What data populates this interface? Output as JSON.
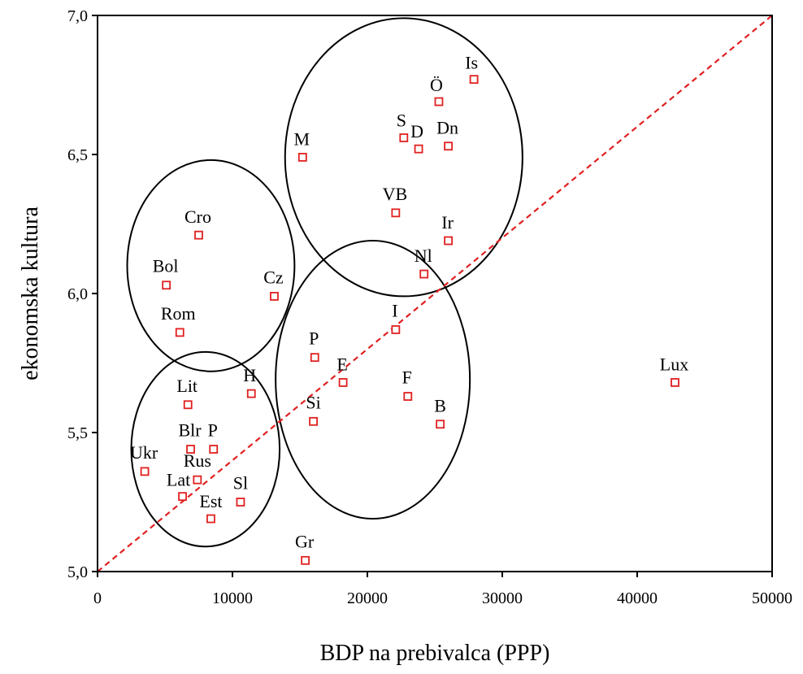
{
  "chart_data": {
    "type": "scatter",
    "xlabel": "BDP na prebivalca (PPP)",
    "ylabel": "ekonomska kultura",
    "xlim": [
      0,
      50000
    ],
    "ylim": [
      5.0,
      7.0
    ],
    "x_ticks": [
      0,
      10000,
      20000,
      30000,
      40000,
      50000
    ],
    "x_tick_labels": [
      "0",
      "10000",
      "20000",
      "30000",
      "40000",
      "50000"
    ],
    "y_ticks": [
      5.0,
      5.5,
      6.0,
      6.5,
      7.0
    ],
    "y_tick_labels": [
      "5,0",
      "5,5",
      "6,0",
      "6,5",
      "7,0"
    ],
    "grid": false,
    "marker": "open-square",
    "marker_color": "#e02020",
    "reference_line": {
      "from": [
        0,
        5.0
      ],
      "to": [
        50000,
        7.0
      ],
      "style": "dashed",
      "color": "#e02020"
    },
    "points": [
      {
        "label": "Is",
        "x": 27900,
        "y": 6.77
      },
      {
        "label": "Ö",
        "x": 25300,
        "y": 6.69
      },
      {
        "label": "S",
        "x": 22700,
        "y": 6.56
      },
      {
        "label": "D",
        "x": 23800,
        "y": 6.52
      },
      {
        "label": "Dn",
        "x": 26000,
        "y": 6.53
      },
      {
        "label": "M",
        "x": 15200,
        "y": 6.49
      },
      {
        "label": "VB",
        "x": 22100,
        "y": 6.29
      },
      {
        "label": "Ir",
        "x": 26000,
        "y": 6.19
      },
      {
        "label": "Nl",
        "x": 24200,
        "y": 6.07
      },
      {
        "label": "Cro",
        "x": 7500,
        "y": 6.21
      },
      {
        "label": "Bol",
        "x": 5100,
        "y": 6.03
      },
      {
        "label": "Cz",
        "x": 13100,
        "y": 5.99
      },
      {
        "label": "Rom",
        "x": 6100,
        "y": 5.86
      },
      {
        "label": "I",
        "x": 22100,
        "y": 5.87
      },
      {
        "label": "P",
        "x": 16100,
        "y": 5.77
      },
      {
        "label": "E",
        "x": 18200,
        "y": 5.68
      },
      {
        "label": "F",
        "x": 23000,
        "y": 5.63
      },
      {
        "label": "B",
        "x": 25400,
        "y": 5.53
      },
      {
        "label": "Si",
        "x": 16000,
        "y": 5.54
      },
      {
        "label": "Lux",
        "x": 42800,
        "y": 5.68
      },
      {
        "label": "H",
        "x": 11400,
        "y": 5.64
      },
      {
        "label": "Lit",
        "x": 6700,
        "y": 5.6
      },
      {
        "label": "Blr",
        "x": 6900,
        "y": 5.44
      },
      {
        "label": "P",
        "x": 8600,
        "y": 5.44
      },
      {
        "label": "Ukr",
        "x": 3500,
        "y": 5.36
      },
      {
        "label": "Rus",
        "x": 7400,
        "y": 5.33
      },
      {
        "label": "Lat",
        "x": 6300,
        "y": 5.27
      },
      {
        "label": "Est",
        "x": 8400,
        "y": 5.19
      },
      {
        "label": "Sl",
        "x": 10600,
        "y": 5.25
      },
      {
        "label": "Gr",
        "x": 15400,
        "y": 5.04
      }
    ],
    "clusters": [
      {
        "cx": 22700,
        "cy": 6.49,
        "rx": 8800,
        "ry": 0.5
      },
      {
        "cx": 8400,
        "cy": 6.1,
        "rx": 6200,
        "ry": 0.38
      },
      {
        "cx": 20400,
        "cy": 5.69,
        "rx": 7200,
        "ry": 0.5
      },
      {
        "cx": 8000,
        "cy": 5.44,
        "rx": 5500,
        "ry": 0.35
      }
    ]
  }
}
